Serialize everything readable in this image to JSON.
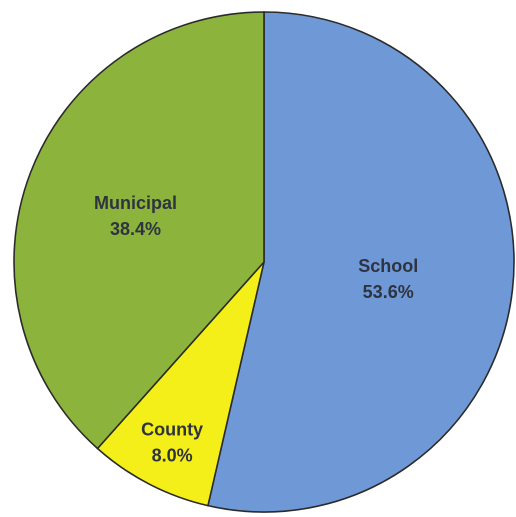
{
  "chart_data": {
    "type": "pie",
    "title": "",
    "start_angle_deg": 0,
    "direction": "clockwise",
    "slices": [
      {
        "label": "School",
        "value": 53.6,
        "value_label": "53.6%",
        "color": "#6f98d6"
      },
      {
        "label": "County",
        "value": 8.0,
        "value_label": "8.0%",
        "color": "#f4ef18"
      },
      {
        "label": "Municipal",
        "value": 38.4,
        "value_label": "38.4%",
        "color": "#8cb43c"
      }
    ],
    "legend": "none",
    "labels_inside": true
  }
}
